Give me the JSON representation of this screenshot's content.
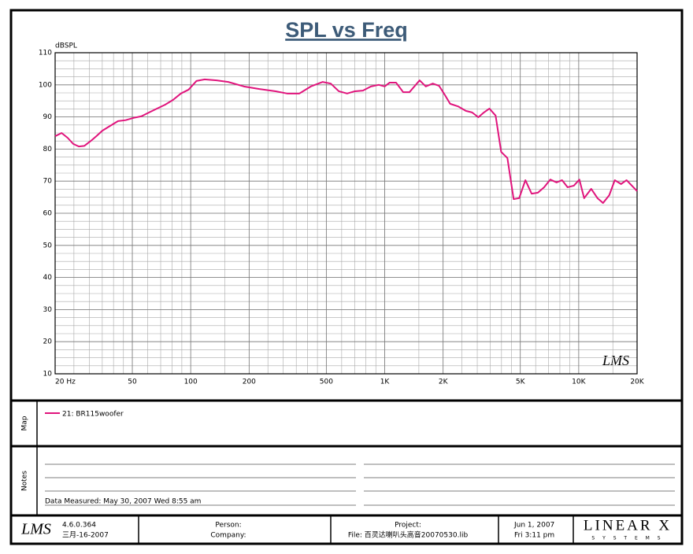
{
  "chart_data": {
    "type": "line",
    "title": "SPL vs Freq",
    "y_label": "dBSPL",
    "watermark": "LMS",
    "xscale": "log",
    "grid": true,
    "xlim": [
      20,
      20000
    ],
    "xticks": [
      {
        "value": 20,
        "label": "20  Hz"
      },
      50,
      100,
      200,
      500,
      {
        "value": 1000,
        "label": "1K"
      },
      {
        "value": 2000,
        "label": "2K"
      },
      {
        "value": 5000,
        "label": "5K"
      },
      {
        "value": 10000,
        "label": "10K"
      },
      {
        "value": 20000,
        "label": "20K"
      }
    ],
    "ylim": [
      10,
      110
    ],
    "yticks": [
      10,
      20,
      30,
      40,
      50,
      60,
      70,
      80,
      90,
      100,
      110
    ],
    "x": [
      20,
      21.6,
      23.2,
      24.8,
      26.5,
      28.3,
      30.5,
      32.6,
      35,
      38.4,
      42.2,
      46.2,
      50.7,
      55.7,
      61,
      67,
      73.7,
      81,
      89,
      97.5,
      107,
      118,
      136,
      156,
      188,
      226,
      274,
      314,
      363,
      416,
      478,
      527,
      580,
      640,
      702,
      772,
      849,
      932,
      1000,
      1061,
      1144,
      1246,
      1341,
      1513,
      1628,
      1770,
      1906,
      2035,
      2174,
      2387,
      2620,
      2822,
      3040,
      3246,
      3467,
      3731,
      3985,
      4290,
      4620,
      4934,
      5312,
      5720,
      6159,
      6632,
      7141,
      7690,
      8212,
      8769,
      9441,
      10082,
      10671,
      11600,
      12500,
      13350,
      14370,
      15350,
      16530,
      17650,
      20000
    ],
    "series": [
      {
        "name": "21: BR115woofer",
        "color": "#e0147c",
        "values": [
          84,
          85,
          83.5,
          81.6,
          80.8,
          81,
          82.5,
          84,
          85.7,
          87.2,
          88.7,
          89,
          89.7,
          90.2,
          91.4,
          92.6,
          93.8,
          95.3,
          97.3,
          98.5,
          101.2,
          101.7,
          101.4,
          100.9,
          99.5,
          98.7,
          98,
          97.3,
          97.3,
          99.5,
          100.9,
          100.4,
          98,
          97.3,
          98,
          98.2,
          99.5,
          100,
          99.5,
          100.7,
          100.7,
          97.7,
          97.7,
          101.4,
          99.5,
          100.4,
          99.7,
          97,
          94.1,
          93.3,
          91.9,
          91.4,
          89.9,
          91.4,
          92.6,
          90.4,
          79.1,
          77.2,
          64.4,
          64.7,
          70.3,
          66.1,
          66.4,
          68.1,
          70.5,
          69.6,
          70.3,
          68.1,
          68.6,
          70.5,
          64.7,
          67.6,
          64.7,
          63.2,
          65.6,
          70.3,
          69.1,
          70.3,
          66.9
        ]
      }
    ]
  },
  "map_panel": {
    "label": "Map"
  },
  "notes_panel": {
    "label": "Notes",
    "data_measured": "Data Measured: May 30, 2007   Wed   8:55 am"
  },
  "footer": {
    "logo": "LMS",
    "version": "4.6.0.364",
    "build_date": "三月-16-2007",
    "person": "Person:",
    "company": "Company:",
    "project": "Project:",
    "file": "File: 百灵达喇叭头高音20070530.lib",
    "date": "Jun  1, 2007",
    "time": "Fri  3:11 pm",
    "brand": "LINEAR X",
    "brand_sub": "S Y S T E M S"
  }
}
